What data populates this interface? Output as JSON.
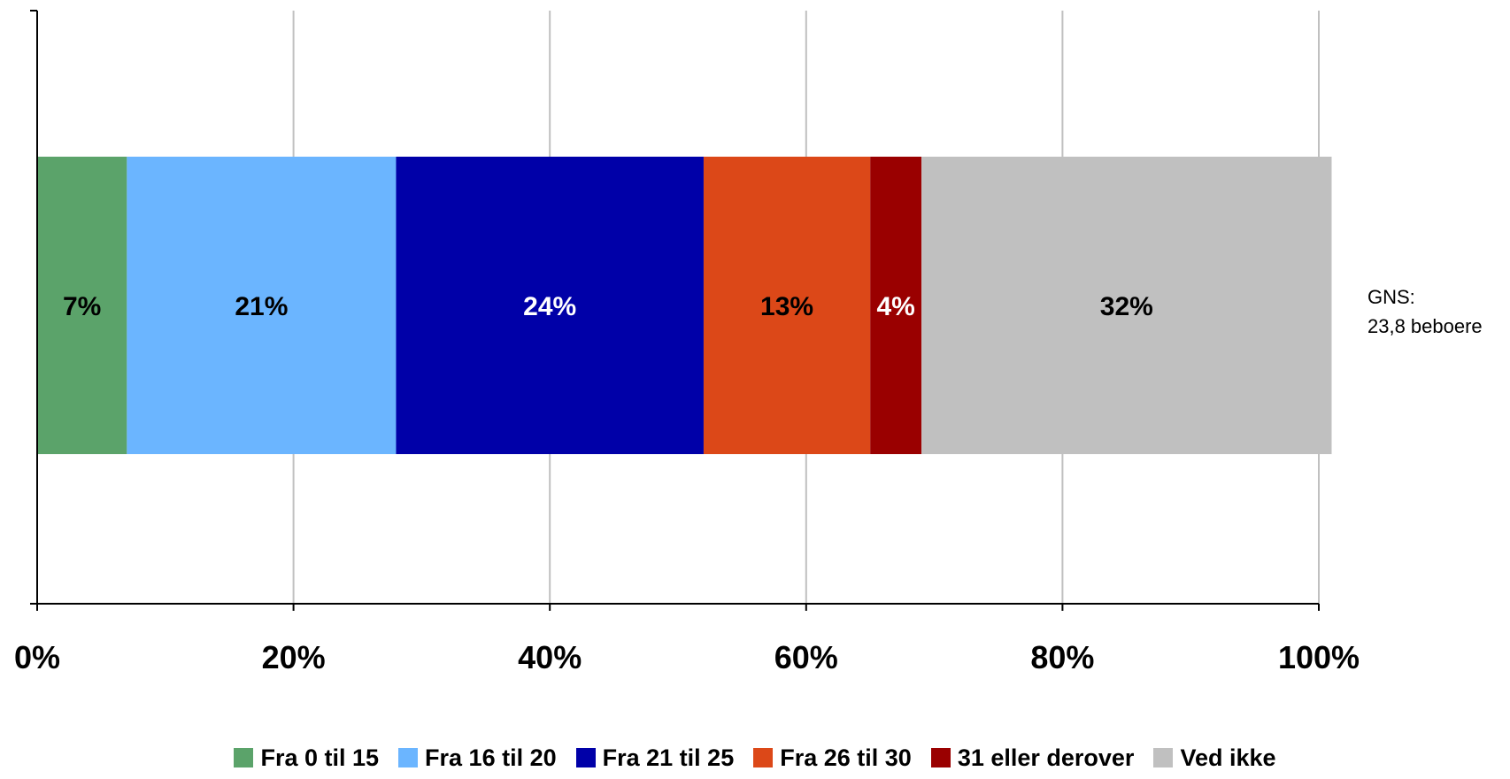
{
  "chart_data": {
    "type": "bar",
    "orientation": "horizontal",
    "stacked": true,
    "categories": [
      ""
    ],
    "series": [
      {
        "name": "Fra 0 til 15",
        "values": [
          7
        ],
        "label": "7%",
        "color": "#5BA36A",
        "label_color": "#000000"
      },
      {
        "name": "Fra 16 til 20",
        "values": [
          21
        ],
        "label": "21%",
        "color": "#6BB5FF",
        "label_color": "#000000"
      },
      {
        "name": "Fra 21 til 25",
        "values": [
          24
        ],
        "label": "24%",
        "color": "#0000A8",
        "label_color": "#FFFFFF"
      },
      {
        "name": "Fra 26 til 30",
        "values": [
          13
        ],
        "label": "13%",
        "color": "#DC4818",
        "label_color": "#000000"
      },
      {
        "name": "31 eller derover",
        "values": [
          4
        ],
        "label": "4%",
        "color": "#9A0000",
        "label_color": "#FFFFFF"
      },
      {
        "name": "Ved ikke",
        "values": [
          32
        ],
        "label": "32%",
        "color": "#C0C0C0",
        "label_color": "#000000"
      }
    ],
    "xlim": [
      0,
      100
    ],
    "x_ticks": [
      "0%",
      "20%",
      "40%",
      "60%",
      "80%",
      "100%"
    ],
    "x_tick_values": [
      0,
      20,
      40,
      60,
      80,
      100
    ],
    "grid": true,
    "legend_position": "bottom",
    "annotation": {
      "line1": "GNS:",
      "line2": "23,8 beboere"
    }
  }
}
